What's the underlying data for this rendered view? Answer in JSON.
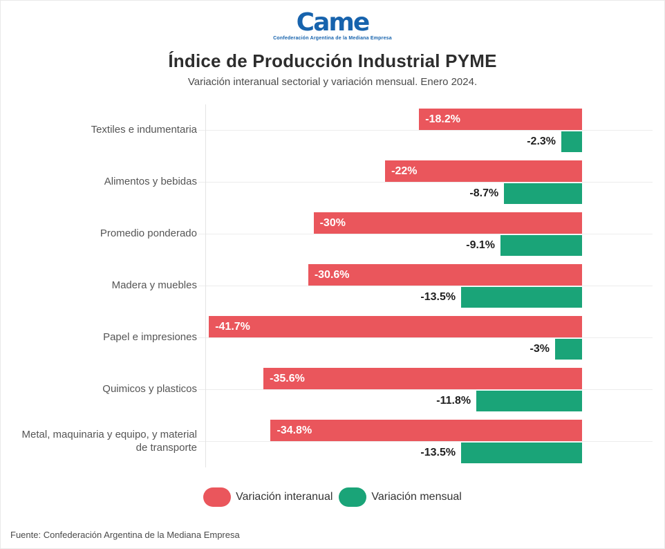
{
  "logo": {
    "name": "Came",
    "tagline": "Confederación Argentina de la Mediana Empresa"
  },
  "header": {
    "title": "Índice de Producción Industrial PYME",
    "subtitle": "Variación interanual sectorial y variación mensual. Enero 2024."
  },
  "colors": {
    "interanual_red": "#EA565C",
    "mensual_green": "#1AA478",
    "logo_blue": "#1763AD",
    "gridline": "#ECECEC"
  },
  "legend": {
    "items": [
      {
        "label": "Variación interanual",
        "color": "#EA565C"
      },
      {
        "label": "Variación mensual",
        "color": "#1AA478"
      }
    ]
  },
  "footer": {
    "source": "Fuente: Confederación Argentina de la Mediana Empresa"
  },
  "chart_data": {
    "type": "bar",
    "orientation": "horizontal",
    "title": "Índice de Producción Industrial PYME",
    "subtitle": "Variación interanual sectorial y variación mensual. Enero 2024.",
    "unit": "%",
    "xlim": [
      -42.1,
      7.9
    ],
    "grid": "per-category horizontal gridlines, left vertical axis line at plot start",
    "legend_position": "bottom-center",
    "categories": [
      "Textiles e indumentaria",
      "Alimentos y bebidas",
      "Promedio ponderado",
      "Madera y muebles",
      "Papel e impresiones",
      "Quimicos y plasticos",
      "Metal, maquinaria y equipo, y material de transporte"
    ],
    "series": [
      {
        "name": "Variación interanual",
        "color": "#EA565C",
        "label_position": "inside-left-white",
        "values": [
          -18.2,
          -22,
          -30,
          -30.6,
          -41.7,
          -35.6,
          -34.8
        ],
        "labels": [
          "-18.2%",
          "-22%",
          "-30%",
          "-30.6%",
          "-41.7%",
          "-35.6%",
          "-34.8%"
        ]
      },
      {
        "name": "Variación mensual",
        "color": "#1AA478",
        "label_position": "outside-left-dark",
        "values": [
          -2.3,
          -8.7,
          -9.1,
          -13.5,
          -3,
          -11.8,
          -13.5
        ],
        "labels": [
          "-2.3%",
          "-8.7%",
          "-9.1%",
          "-13.5%",
          "-3%",
          "-11.8%",
          "-13.5%"
        ]
      }
    ],
    "layout": {
      "baseline_right_pct": 15.8,
      "pct_width_per_unit": 2.0
    }
  }
}
